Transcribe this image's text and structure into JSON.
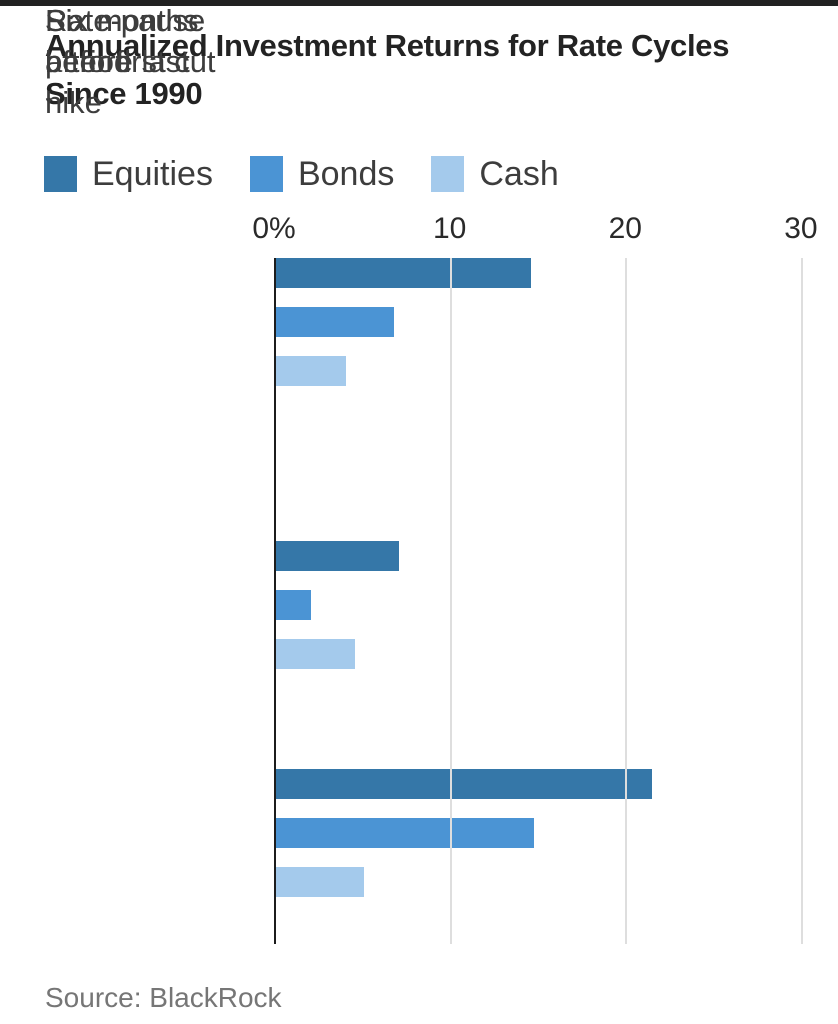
{
  "title": "Annualized Investment Returns for Rate Cycles Since 1990",
  "source": "Source: BlackRock",
  "legend": {
    "items": [
      {
        "label": "Equities"
      },
      {
        "label": "Bonds"
      },
      {
        "label": "Cash"
      }
    ]
  },
  "chart_data": {
    "type": "bar",
    "orientation": "horizontal",
    "title": "Annualized Investment Returns for Rate Cycles Since 1990",
    "unit": "percent",
    "categories": [
      "Six months\nbefore last\nhike",
      "Rate-pause\nperiod",
      "Six months\nafter first cut"
    ],
    "series": [
      {
        "name": "Equities",
        "color": "#3577a8",
        "values": [
          7,
          21.4,
          14.5
        ]
      },
      {
        "name": "Bonds",
        "color": "#4b94d4",
        "values": [
          2,
          14.7,
          6.7
        ]
      },
      {
        "name": "Cash",
        "color": "#a4caec",
        "values": [
          4.5,
          5,
          4
        ]
      }
    ],
    "x_ticks": [
      {
        "label": "0%",
        "value": 0
      },
      {
        "label": "10",
        "value": 10
      },
      {
        "label": "20",
        "value": 20
      },
      {
        "label": "30",
        "value": 30
      }
    ],
    "xlim": [
      0,
      32
    ],
    "grid": "vertical-gridlines-at-ticks",
    "legend_position": "top-left"
  },
  "colors": {
    "top_bar": "#212121",
    "title_text": "#232323",
    "label_text": "#3d3d3d",
    "tick_text": "#2a2a2a",
    "source_text": "#767676",
    "axis_line": "#1c1c1c",
    "gridline": "#dedede"
  }
}
